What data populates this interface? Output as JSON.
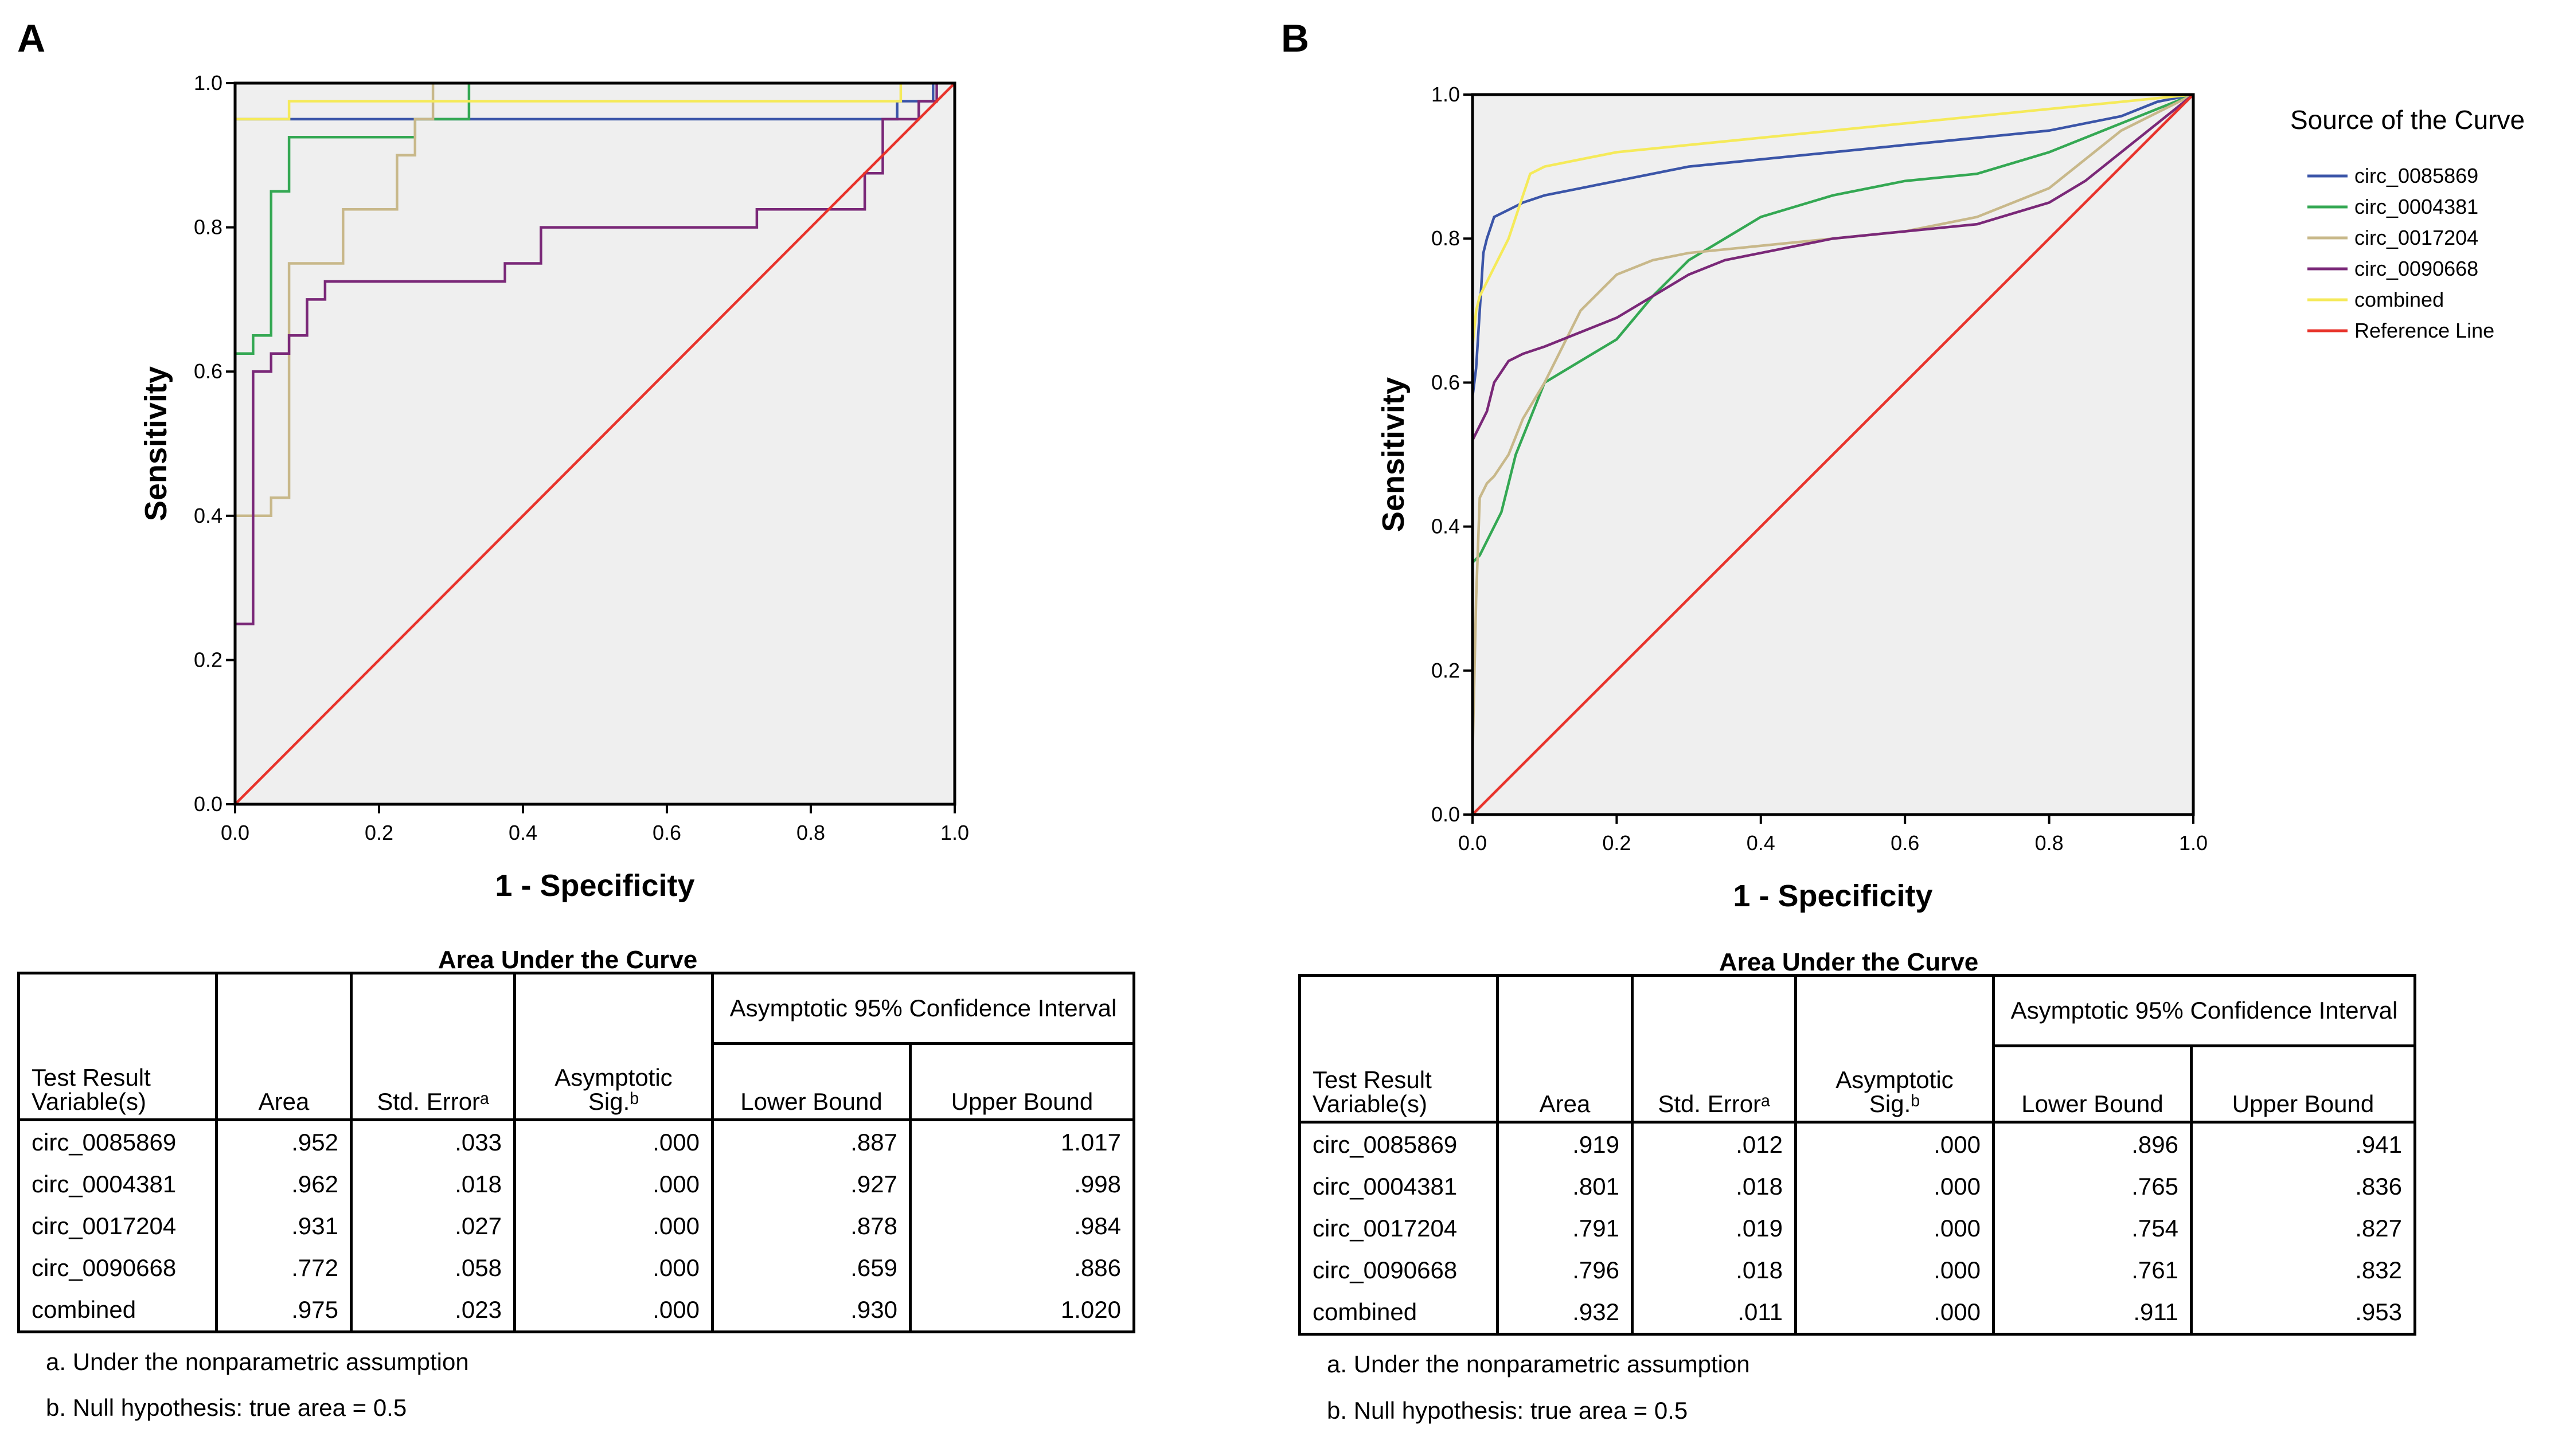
{
  "panels": [
    {
      "label": "A",
      "chart_data": {
        "type": "line",
        "title": "",
        "xlabel": "1 - Specificity",
        "ylabel": "Sensitivity",
        "xlim": [
          0,
          1
        ],
        "ylim": [
          0,
          1
        ],
        "xticks": [
          "0.0",
          "0.2",
          "0.4",
          "0.6",
          "0.8",
          "1.0"
        ],
        "yticks": [
          "0.0",
          "0.2",
          "0.4",
          "0.6",
          "0.8",
          "1.0"
        ],
        "grid": false,
        "background": "#efefef",
        "series": [
          {
            "name": "circ_0085869",
            "color": "#3b55a8",
            "x": [
              0,
              0,
              0.075,
              0.075,
              0.92,
              0.92,
              0.97,
              0.97,
              1
            ],
            "y": [
              0,
              0.95,
              0.95,
              0.95,
              0.95,
              0.975,
              0.975,
              1,
              1
            ]
          },
          {
            "name": "circ_0004381",
            "color": "#34a853",
            "x": [
              0,
              0,
              0.025,
              0.025,
              0.05,
              0.05,
              0.075,
              0.075,
              0.25,
              0.25,
              0.325,
              0.325,
              1
            ],
            "y": [
              0,
              0.625,
              0.625,
              0.65,
              0.65,
              0.85,
              0.85,
              0.925,
              0.925,
              0.95,
              0.95,
              1,
              1
            ]
          },
          {
            "name": "circ_0017204",
            "color": "#c8b88a",
            "x": [
              0,
              0,
              0.05,
              0.05,
              0.075,
              0.075,
              0.15,
              0.15,
              0.175,
              0.175,
              0.225,
              0.225,
              0.25,
              0.25,
              0.275,
              0.275,
              1
            ],
            "y": [
              0,
              0.4,
              0.4,
              0.425,
              0.425,
              0.75,
              0.75,
              0.825,
              0.825,
              0.825,
              0.825,
              0.9,
              0.9,
              0.95,
              0.95,
              1,
              1
            ]
          },
          {
            "name": "circ_0090668",
            "color": "#7a2878",
            "x": [
              0,
              0,
              0.025,
              0.025,
              0.05,
              0.05,
              0.075,
              0.075,
              0.1,
              0.1,
              0.125,
              0.125,
              0.375,
              0.375,
              0.425,
              0.425,
              0.725,
              0.725,
              0.875,
              0.875,
              0.9,
              0.9,
              0.95,
              0.95,
              0.975,
              0.975,
              1
            ],
            "y": [
              0,
              0.25,
              0.25,
              0.6,
              0.6,
              0.625,
              0.625,
              0.65,
              0.65,
              0.7,
              0.7,
              0.725,
              0.725,
              0.75,
              0.75,
              0.8,
              0.8,
              0.825,
              0.825,
              0.875,
              0.875,
              0.95,
              0.95,
              0.975,
              0.975,
              1,
              1
            ]
          },
          {
            "name": "combined",
            "color": "#f5ea5a",
            "x": [
              0,
              0,
              0.075,
              0.075,
              0.925,
              0.925,
              1
            ],
            "y": [
              0,
              0.95,
              0.95,
              0.975,
              0.975,
              1,
              1
            ]
          },
          {
            "name": "Reference Line",
            "color": "#e8332b",
            "x": [
              0,
              1
            ],
            "y": [
              0,
              1
            ]
          }
        ]
      },
      "auc_table": {
        "title": "Area Under the Curve",
        "headers": {
          "variable": "Test Result Variable(s)",
          "area": "Area",
          "std_error": "Std. Errorᵃ",
          "sig": "Asymptotic Sig.ᵇ",
          "ci": "Asymptotic 95% Confidence Interval",
          "lower": "Lower Bound",
          "upper": "Upper Bound"
        },
        "rows": [
          [
            "circ_0085869",
            ".952",
            ".033",
            ".000",
            ".887",
            "1.017"
          ],
          [
            "circ_0004381",
            ".962",
            ".018",
            ".000",
            ".927",
            ".998"
          ],
          [
            "circ_0017204",
            ".931",
            ".027",
            ".000",
            ".878",
            ".984"
          ],
          [
            "circ_0090668",
            ".772",
            ".058",
            ".000",
            ".659",
            ".886"
          ],
          [
            "combined",
            ".975",
            ".023",
            ".000",
            ".930",
            "1.020"
          ]
        ],
        "footnotes": [
          "a. Under the nonparametric assumption",
          "b. Null hypothesis: true area = 0.5"
        ]
      }
    },
    {
      "label": "B",
      "chart_data": {
        "type": "line",
        "title": "",
        "xlabel": "1 - Specificity",
        "ylabel": "Sensitivity",
        "xlim": [
          0,
          1
        ],
        "ylim": [
          0,
          1
        ],
        "xticks": [
          "0.0",
          "0.2",
          "0.4",
          "0.6",
          "0.8",
          "1.0"
        ],
        "yticks": [
          "0.0",
          "0.2",
          "0.4",
          "0.6",
          "0.8",
          "1.0"
        ],
        "grid": false,
        "background": "#efefef",
        "legend": {
          "title": "Source of the Curve",
          "position": "right",
          "items": [
            {
              "name": "circ_0085869",
              "color": "#3b55a8"
            },
            {
              "name": "circ_0004381",
              "color": "#34a853"
            },
            {
              "name": "circ_0017204",
              "color": "#c8b88a"
            },
            {
              "name": "circ_0090668",
              "color": "#7a2878"
            },
            {
              "name": "combined",
              "color": "#f5ea5a"
            },
            {
              "name": "Reference Line",
              "color": "#e8332b"
            }
          ]
        },
        "series": [
          {
            "name": "circ_0085869",
            "color": "#3b55a8",
            "x": [
              0,
              0,
              0.005,
              0.01,
              0.015,
              0.02,
              0.03,
              0.05,
              0.07,
              0.1,
              0.15,
              0.2,
              0.3,
              0.4,
              0.5,
              0.6,
              0.7,
              0.8,
              0.85,
              0.9,
              0.95,
              1
            ],
            "y": [
              0,
              0.58,
              0.62,
              0.7,
              0.78,
              0.8,
              0.83,
              0.84,
              0.85,
              0.86,
              0.87,
              0.88,
              0.9,
              0.91,
              0.92,
              0.93,
              0.94,
              0.95,
              0.96,
              0.97,
              0.99,
              1
            ]
          },
          {
            "name": "circ_0004381",
            "color": "#34a853",
            "x": [
              0,
              0,
              0.01,
              0.02,
              0.03,
              0.04,
              0.05,
              0.06,
              0.08,
              0.1,
              0.15,
              0.2,
              0.25,
              0.3,
              0.35,
              0.4,
              0.5,
              0.6,
              0.7,
              0.8,
              0.9,
              1
            ],
            "y": [
              0,
              0.35,
              0.36,
              0.38,
              0.4,
              0.42,
              0.46,
              0.5,
              0.55,
              0.6,
              0.63,
              0.66,
              0.72,
              0.77,
              0.8,
              0.83,
              0.86,
              0.88,
              0.89,
              0.92,
              0.96,
              1
            ]
          },
          {
            "name": "circ_0017204",
            "color": "#c8b88a",
            "x": [
              0,
              0,
              0.005,
              0.01,
              0.02,
              0.03,
              0.05,
              0.07,
              0.1,
              0.15,
              0.2,
              0.25,
              0.3,
              0.4,
              0.5,
              0.6,
              0.7,
              0.8,
              0.9,
              1
            ],
            "y": [
              0,
              0.08,
              0.3,
              0.44,
              0.46,
              0.47,
              0.5,
              0.55,
              0.6,
              0.7,
              0.75,
              0.77,
              0.78,
              0.79,
              0.8,
              0.81,
              0.83,
              0.87,
              0.95,
              1
            ]
          },
          {
            "name": "circ_0090668",
            "color": "#7a2878",
            "x": [
              0,
              0,
              0.01,
              0.02,
              0.03,
              0.05,
              0.07,
              0.1,
              0.15,
              0.2,
              0.25,
              0.3,
              0.35,
              0.4,
              0.5,
              0.6,
              0.7,
              0.8,
              0.85,
              0.9,
              1
            ],
            "y": [
              0,
              0.52,
              0.54,
              0.56,
              0.6,
              0.63,
              0.64,
              0.65,
              0.67,
              0.69,
              0.72,
              0.75,
              0.77,
              0.78,
              0.8,
              0.81,
              0.82,
              0.85,
              0.88,
              0.92,
              1
            ]
          },
          {
            "name": "combined",
            "color": "#f5ea5a",
            "x": [
              0,
              0,
              0.005,
              0.01,
              0.02,
              0.03,
              0.05,
              0.07,
              0.08,
              0.1,
              0.15,
              0.2,
              0.3,
              0.4,
              0.5,
              0.6,
              0.7,
              0.8,
              0.9,
              1
            ],
            "y": [
              0,
              0.65,
              0.7,
              0.72,
              0.74,
              0.76,
              0.8,
              0.86,
              0.89,
              0.9,
              0.91,
              0.92,
              0.93,
              0.94,
              0.95,
              0.96,
              0.97,
              0.98,
              0.99,
              1
            ]
          },
          {
            "name": "Reference Line",
            "color": "#e8332b",
            "x": [
              0,
              1
            ],
            "y": [
              0,
              1
            ]
          }
        ]
      },
      "auc_table": {
        "title": "Area Under the Curve",
        "headers": {
          "variable": "Test Result Variable(s)",
          "area": "Area",
          "std_error": "Std. Errorᵃ",
          "sig": "Asymptotic Sig.ᵇ",
          "ci": "Asymptotic 95% Confidence Interval",
          "lower": "Lower Bound",
          "upper": "Upper Bound"
        },
        "rows": [
          [
            "circ_0085869",
            ".919",
            ".012",
            ".000",
            ".896",
            ".941"
          ],
          [
            "circ_0004381",
            ".801",
            ".018",
            ".000",
            ".765",
            ".836"
          ],
          [
            "circ_0017204",
            ".791",
            ".019",
            ".000",
            ".754",
            ".827"
          ],
          [
            "circ_0090668",
            ".796",
            ".018",
            ".000",
            ".761",
            ".832"
          ],
          [
            "combined",
            ".932",
            ".011",
            ".000",
            ".911",
            ".953"
          ]
        ],
        "footnotes": [
          "a. Under the nonparametric assumption",
          "b. Null hypothesis: true area = 0.5"
        ]
      }
    }
  ]
}
